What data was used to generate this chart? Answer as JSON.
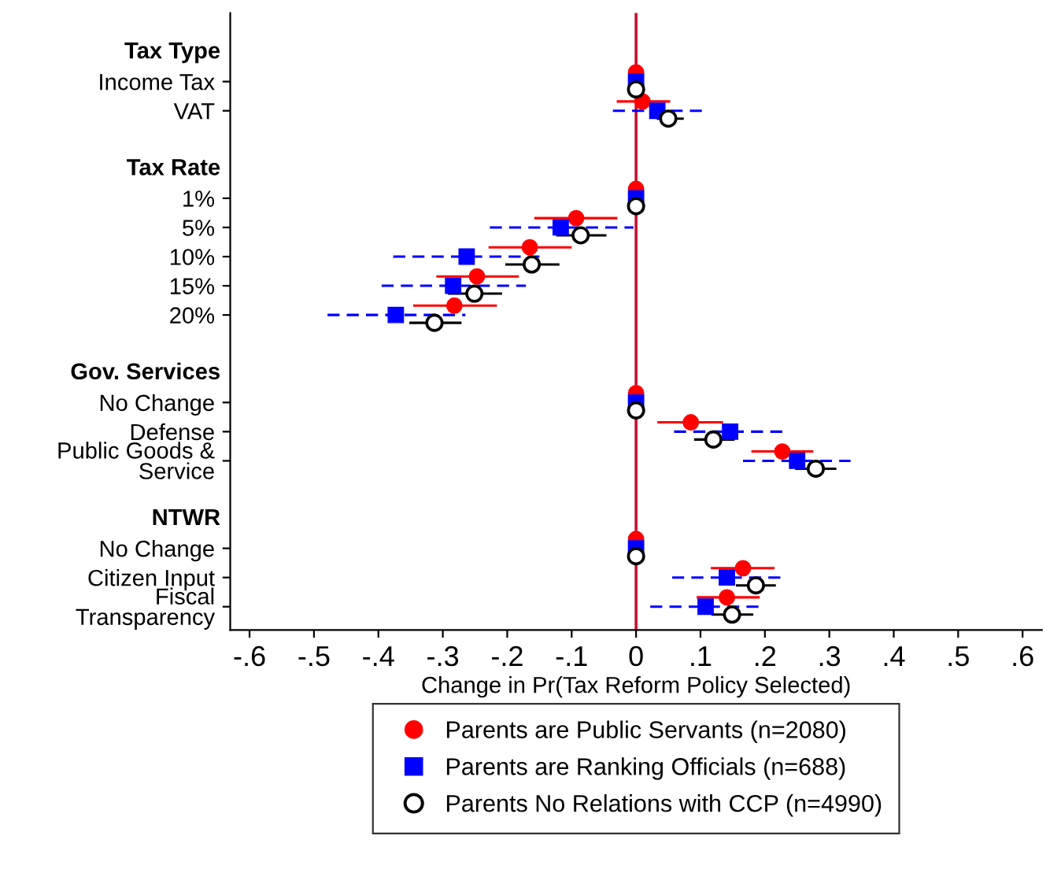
{
  "chart_data": {
    "type": "scatter",
    "orientation": "horizontal",
    "xlabel": "Change in Pr(Tax Reform Policy Selected)",
    "categories": [
      "Tax Type",
      "Income Tax",
      "VAT",
      null,
      "Tax Rate",
      "1%",
      "5%",
      "10%",
      "15%",
      "20%",
      null,
      "Gov. Services",
      "No Change",
      "Defense",
      "Public Goods &\nService",
      null,
      "NTWR",
      "No Change",
      "Citizen Input",
      "Fiscal\nTransparency"
    ],
    "series": [
      {
        "name": "Parents are Public Servants (n=2080)",
        "color": "#ff0000",
        "marker": "circle",
        "line_style": "solid",
        "values": [
          null,
          0,
          0.01,
          null,
          null,
          0,
          -0.093,
          -0.165,
          -0.247,
          -0.282,
          null,
          null,
          0,
          0.085,
          0.227,
          null,
          null,
          0,
          0.166,
          0.141
        ],
        "errors": [
          null,
          null,
          [
            -0.03,
            0.053
          ],
          null,
          null,
          null,
          [
            -0.158,
            -0.029
          ],
          [
            -0.229,
            -0.1
          ],
          [
            -0.31,
            -0.182
          ],
          [
            -0.346,
            -0.216
          ],
          null,
          null,
          null,
          [
            0.033,
            0.135
          ],
          [
            0.179,
            0.275
          ],
          null,
          null,
          null,
          [
            0.116,
            0.215
          ],
          [
            0.094,
            0.192
          ]
        ]
      },
      {
        "name": "Parents are Ranking Officials (n=688)",
        "color": "#0000ff",
        "marker": "square",
        "line_style": "dashed",
        "values": [
          null,
          0,
          0.033,
          null,
          null,
          0,
          -0.117,
          -0.263,
          -0.284,
          -0.373,
          null,
          null,
          0,
          0.146,
          0.25,
          null,
          null,
          0,
          0.141,
          0.108
        ],
        "errors": [
          null,
          null,
          [
            -0.036,
            0.106
          ],
          null,
          null,
          null,
          [
            -0.227,
            -0.004
          ],
          [
            -0.377,
            -0.15
          ],
          [
            -0.395,
            -0.171
          ],
          [
            -0.479,
            -0.265
          ],
          null,
          null,
          null,
          [
            0.059,
            0.234
          ],
          [
            0.166,
            0.333
          ],
          null,
          null,
          null,
          [
            0.056,
            0.228
          ],
          [
            0.022,
            0.194
          ]
        ]
      },
      {
        "name": "Parents No Relations with CCP (n=4990)",
        "color": "#000000",
        "marker": "circle",
        "line_style": "solid",
        "values": [
          null,
          0,
          0.05,
          null,
          null,
          0,
          -0.086,
          -0.162,
          -0.251,
          -0.313,
          null,
          null,
          0,
          0.12,
          0.279,
          null,
          null,
          0,
          0.186,
          0.149
        ],
        "errors": [
          null,
          null,
          [
            0.032,
            0.074
          ],
          null,
          null,
          null,
          [
            -0.124,
            -0.046
          ],
          [
            -0.203,
            -0.119
          ],
          [
            -0.292,
            -0.208
          ],
          [
            -0.352,
            -0.271
          ],
          null,
          null,
          null,
          [
            0.09,
            0.153
          ],
          [
            0.247,
            0.311
          ],
          null,
          null,
          null,
          [
            0.155,
            0.217
          ],
          [
            0.117,
            0.182
          ]
        ]
      }
    ],
    "xlim": [
      -0.63,
      0.63
    ],
    "xticks": [
      {
        "value": -0.6,
        "label": "-.6"
      },
      {
        "value": -0.5,
        "label": "-.5"
      },
      {
        "value": -0.4,
        "label": "-.4"
      },
      {
        "value": -0.3,
        "label": "-.3"
      },
      {
        "value": -0.2,
        "label": "-.2"
      },
      {
        "value": -0.1,
        "label": "-.1"
      },
      0,
      {
        "value": 0.1,
        "label": ".1"
      },
      {
        "value": 0.2,
        "label": ".2"
      },
      {
        "value": 0.3,
        "label": ".3"
      },
      {
        "value": 0.4,
        "label": ".4"
      },
      {
        "value": 0.5,
        "label": ".5"
      },
      {
        "value": 0.6,
        "label": ".6"
      }
    ],
    "ref_lines": [
      {
        "axis": "x",
        "value": 0,
        "color": "#c8102e"
      }
    ],
    "legend": "bottom"
  }
}
